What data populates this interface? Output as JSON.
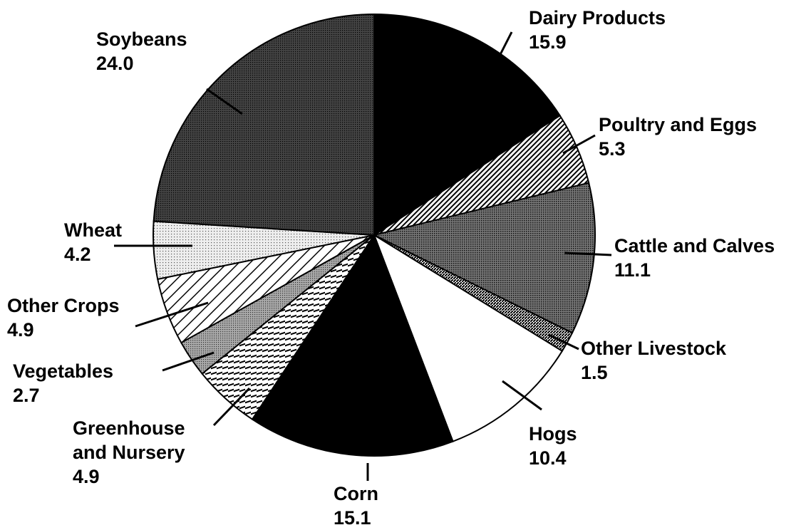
{
  "chart_data": {
    "type": "pie",
    "categories": [
      "Dairy Products",
      "Poultry and Eggs",
      "Cattle and Calves",
      "Other Livestock",
      "Hogs",
      "Corn",
      "Greenhouse and Nursery",
      "Vegetables",
      "Other Crops",
      "Wheat",
      "Soybeans"
    ],
    "values": [
      15.9,
      5.3,
      11.1,
      1.5,
      10.4,
      15.1,
      4.9,
      2.7,
      4.9,
      4.2,
      24.0
    ]
  }
}
